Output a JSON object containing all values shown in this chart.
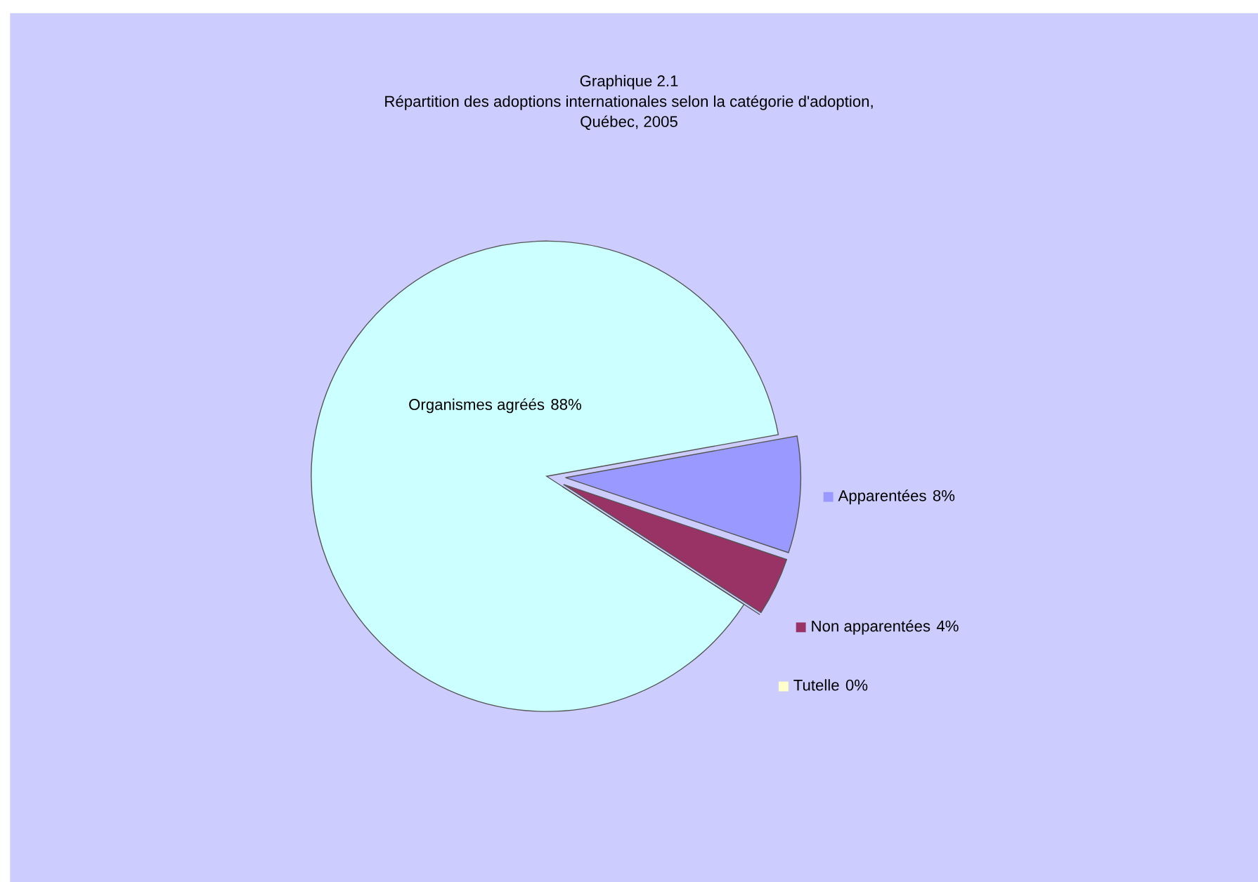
{
  "chart_data": {
    "type": "pie",
    "title": "Graphique 2.1\nRépartition des adoptions internationales selon la catégorie d'adoption,\nQuébec, 2005",
    "categories": [
      "Organismes agréés",
      "Apparentées",
      "Non apparentées",
      "Tutelle"
    ],
    "values": [
      88,
      8,
      4,
      0
    ],
    "colors": [
      "#ccffff",
      "#9999ff",
      "#993366",
      "#ffffcc"
    ],
    "value_labels": [
      "88%",
      "8%",
      "4%",
      "0%"
    ],
    "legend": "right"
  }
}
